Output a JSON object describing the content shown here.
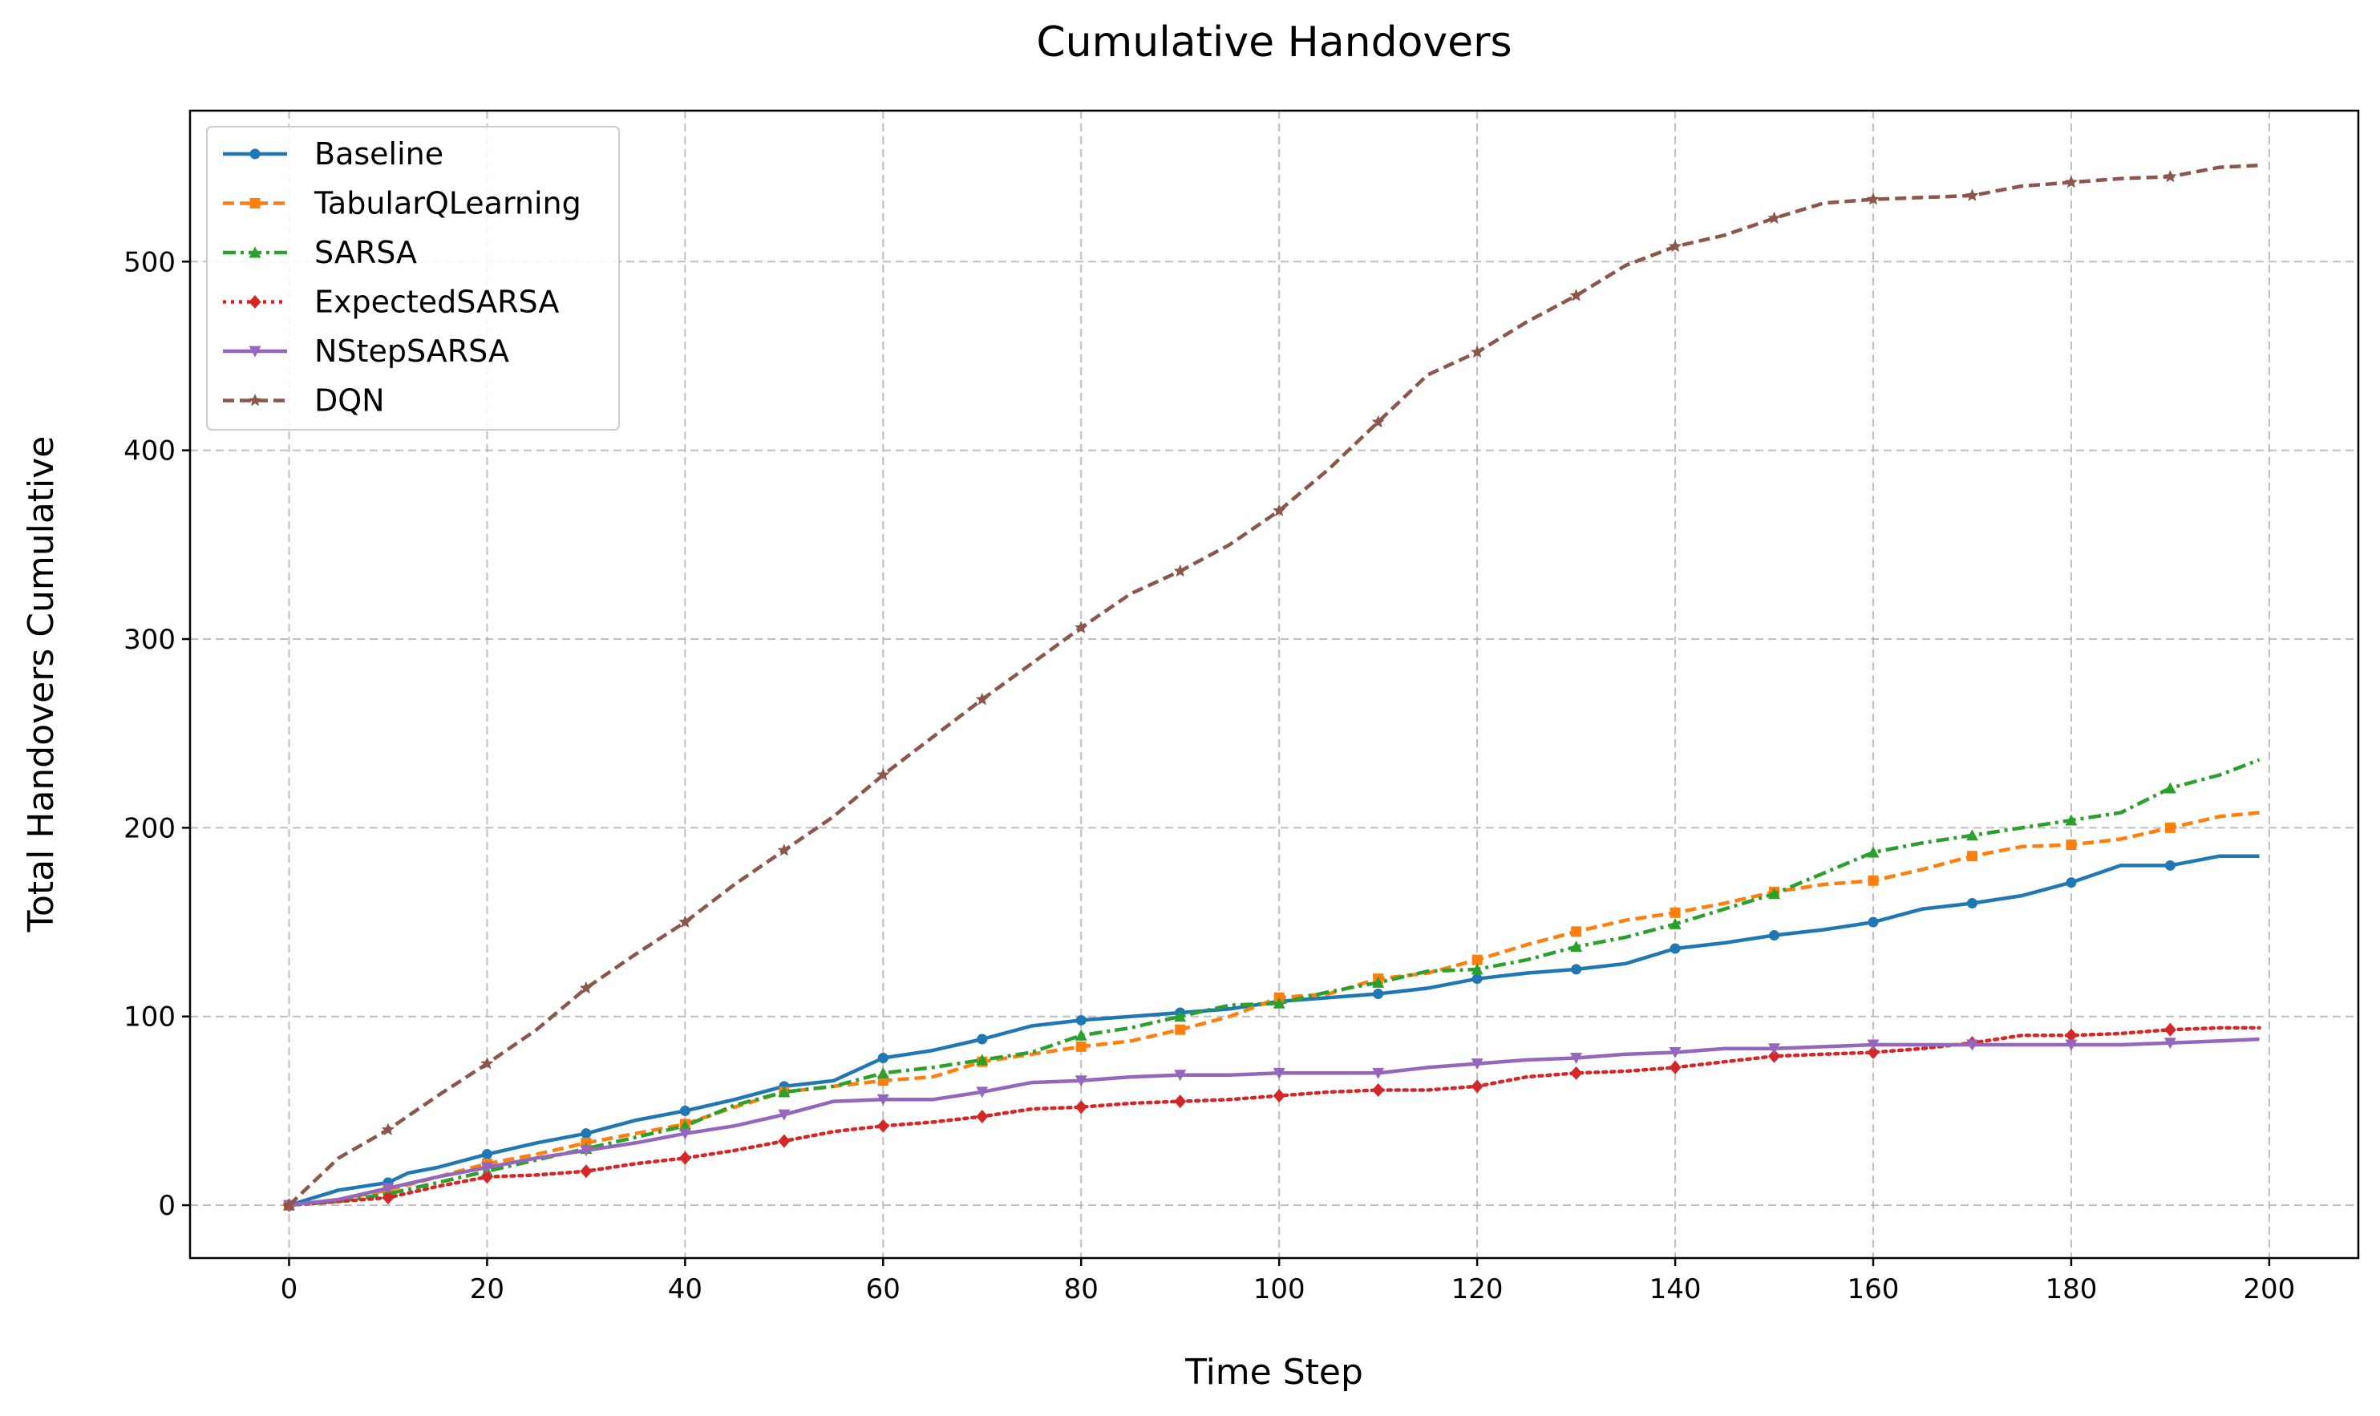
{
  "chart_data": {
    "type": "line",
    "title": "Cumulative Handovers",
    "xlabel": "Time Step",
    "ylabel": "Total Handovers Cumulative",
    "xlim": [
      -10,
      209
    ],
    "ylim": [
      -28,
      580
    ],
    "xticks": [
      0,
      20,
      40,
      60,
      80,
      100,
      120,
      140,
      160,
      180,
      200
    ],
    "yticks": [
      0,
      100,
      200,
      300,
      400,
      500
    ],
    "grid": true,
    "legend_position": "top-left",
    "series": [
      {
        "name": "Baseline",
        "color": "#1f77b4",
        "marker": "circle",
        "dash": "solid",
        "x": [
          0,
          5,
          10,
          12,
          15,
          20,
          25,
          30,
          35,
          40,
          45,
          50,
          55,
          60,
          65,
          70,
          75,
          80,
          85,
          90,
          95,
          100,
          105,
          110,
          115,
          120,
          125,
          130,
          135,
          140,
          145,
          150,
          155,
          160,
          165,
          170,
          175,
          180,
          185,
          190,
          195,
          199
        ],
        "y": [
          0,
          8,
          12,
          17,
          20,
          27,
          33,
          38,
          45,
          50,
          56,
          63,
          66,
          78,
          82,
          88,
          95,
          98,
          100,
          102,
          104,
          108,
          110,
          112,
          115,
          120,
          123,
          125,
          128,
          136,
          139,
          143,
          146,
          150,
          157,
          160,
          164,
          171,
          180,
          180,
          185,
          185
        ]
      },
      {
        "name": "TabularQLearning",
        "color": "#ff7f0e",
        "marker": "square",
        "dash": "dashed",
        "x": [
          0,
          5,
          10,
          15,
          20,
          25,
          30,
          35,
          40,
          45,
          50,
          55,
          60,
          65,
          70,
          75,
          80,
          85,
          90,
          95,
          100,
          105,
          110,
          115,
          120,
          125,
          130,
          135,
          140,
          145,
          150,
          155,
          160,
          165,
          170,
          175,
          180,
          185,
          190,
          195,
          199
        ],
        "y": [
          0,
          3,
          8,
          15,
          22,
          27,
          33,
          38,
          43,
          52,
          60,
          63,
          66,
          68,
          76,
          80,
          84,
          87,
          93,
          100,
          110,
          112,
          120,
          123,
          130,
          138,
          145,
          151,
          155,
          160,
          166,
          170,
          172,
          178,
          185,
          190,
          191,
          194,
          200,
          206,
          208
        ]
      },
      {
        "name": "SARSA",
        "color": "#2ca02c",
        "marker": "triangle-up",
        "dash": "dashdot",
        "x": [
          0,
          5,
          10,
          15,
          20,
          25,
          30,
          35,
          40,
          45,
          50,
          55,
          60,
          65,
          70,
          75,
          80,
          85,
          90,
          95,
          100,
          105,
          110,
          115,
          120,
          125,
          130,
          135,
          140,
          145,
          150,
          155,
          160,
          165,
          170,
          175,
          180,
          185,
          190,
          195,
          199
        ],
        "y": [
          0,
          2,
          6,
          12,
          18,
          24,
          30,
          36,
          42,
          53,
          60,
          63,
          70,
          73,
          77,
          81,
          90,
          94,
          100,
          106,
          107,
          113,
          118,
          124,
          125,
          130,
          137,
          142,
          149,
          157,
          165,
          176,
          187,
          192,
          196,
          200,
          204,
          208,
          221,
          228,
          236
        ]
      },
      {
        "name": "ExpectedSARSA",
        "color": "#d62728",
        "marker": "diamond",
        "dash": "dotted",
        "x": [
          0,
          5,
          10,
          15,
          20,
          25,
          30,
          35,
          40,
          45,
          50,
          55,
          60,
          65,
          70,
          75,
          80,
          85,
          90,
          95,
          100,
          105,
          110,
          115,
          120,
          125,
          130,
          135,
          140,
          145,
          150,
          155,
          160,
          165,
          170,
          175,
          180,
          185,
          190,
          195,
          199
        ],
        "y": [
          0,
          2,
          4,
          10,
          15,
          16,
          18,
          22,
          25,
          29,
          34,
          39,
          42,
          44,
          47,
          51,
          52,
          54,
          55,
          56,
          58,
          60,
          61,
          61,
          63,
          68,
          70,
          71,
          73,
          76,
          79,
          80,
          81,
          83,
          86,
          90,
          90,
          91,
          93,
          94,
          94
        ]
      },
      {
        "name": "NStepSARSA",
        "color": "#9467bd",
        "marker": "triangle-down",
        "dash": "solid",
        "x": [
          0,
          5,
          10,
          15,
          20,
          25,
          30,
          35,
          40,
          45,
          50,
          55,
          60,
          65,
          70,
          75,
          80,
          85,
          90,
          95,
          100,
          105,
          110,
          115,
          120,
          125,
          130,
          135,
          140,
          145,
          150,
          155,
          160,
          165,
          170,
          175,
          180,
          185,
          190,
          195,
          199
        ],
        "y": [
          0,
          3,
          9,
          15,
          20,
          25,
          29,
          33,
          38,
          42,
          48,
          55,
          56,
          56,
          60,
          65,
          66,
          68,
          69,
          69,
          70,
          70,
          70,
          73,
          75,
          77,
          78,
          80,
          81,
          83,
          83,
          84,
          85,
          85,
          85,
          85,
          85,
          85,
          86,
          87,
          88
        ]
      },
      {
        "name": "DQN",
        "color": "#8c564b",
        "marker": "star",
        "dash": "dashed",
        "x": [
          0,
          5,
          10,
          15,
          20,
          25,
          30,
          35,
          40,
          45,
          50,
          55,
          60,
          65,
          70,
          75,
          80,
          85,
          90,
          95,
          100,
          105,
          110,
          115,
          120,
          125,
          130,
          135,
          140,
          145,
          150,
          155,
          160,
          165,
          170,
          175,
          180,
          185,
          190,
          195,
          199
        ],
        "y": [
          0,
          25,
          40,
          58,
          75,
          93,
          115,
          133,
          150,
          170,
          188,
          206,
          228,
          248,
          268,
          287,
          306,
          324,
          336,
          350,
          368,
          390,
          415,
          440,
          452,
          468,
          482,
          498,
          508,
          514,
          523,
          531,
          533,
          534,
          535,
          540,
          542,
          544,
          545,
          550,
          551
        ]
      }
    ]
  }
}
